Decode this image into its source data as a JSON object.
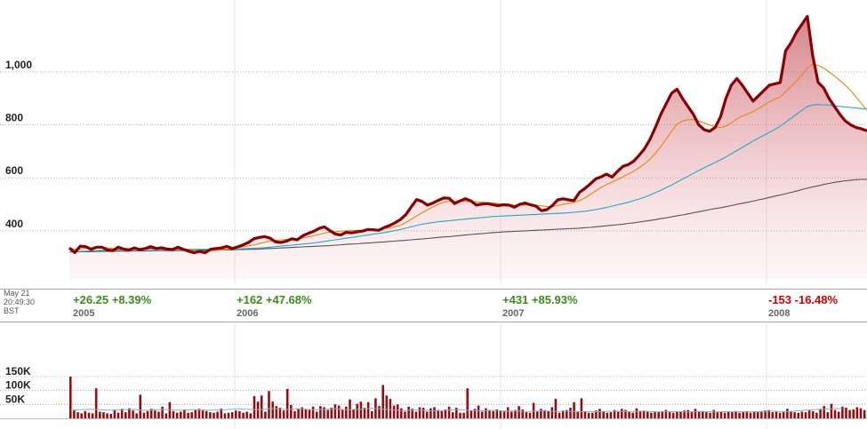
{
  "chart_data": {
    "type": "line",
    "price_axis": {
      "ticks": [
        400,
        600,
        800,
        1000
      ],
      "tick_labels": [
        "400",
        "600",
        "800",
        "1,000"
      ],
      "ylim": [
        215,
        1245
      ]
    },
    "price": [
      335,
      318,
      342,
      340,
      330,
      338,
      338,
      328,
      325,
      338,
      331,
      328,
      335,
      329,
      333,
      340,
      333,
      336,
      331,
      329,
      338,
      330,
      323,
      317,
      322,
      317,
      330,
      333,
      335,
      341,
      333,
      339,
      347,
      356,
      370,
      375,
      378,
      372,
      358,
      356,
      361,
      370,
      366,
      381,
      390,
      398,
      409,
      415,
      401,
      388,
      384,
      394,
      392,
      396,
      399,
      405,
      404,
      402,
      412,
      420,
      430,
      442,
      461,
      490,
      518,
      511,
      497,
      505,
      515,
      524,
      523,
      503,
      513,
      521,
      513,
      497,
      501,
      503,
      499,
      495,
      498,
      497,
      489,
      500,
      505,
      498,
      493,
      476,
      480,
      495,
      517,
      521,
      517,
      514,
      545,
      560,
      577,
      596,
      604,
      614,
      603,
      624,
      643,
      650,
      663,
      685,
      710,
      745,
      790,
      840,
      880,
      920,
      935,
      900,
      870,
      840,
      800,
      782,
      776,
      790,
      830,
      900,
      950,
      975,
      950,
      920,
      890,
      910,
      930,
      950,
      955,
      960,
      1080,
      1110,
      1150,
      1180,
      1210,
      1060,
      960,
      940,
      900,
      870,
      840,
      815,
      800,
      790,
      785,
      778
    ],
    "ma_fast": [
      335,
      330,
      330,
      335,
      336,
      336,
      337,
      336,
      333,
      333,
      332,
      331,
      331,
      332,
      333,
      334,
      334,
      335,
      333,
      333,
      333,
      331,
      329,
      327,
      325,
      324,
      325,
      326,
      328,
      331,
      333,
      336,
      339,
      343,
      347,
      352,
      357,
      362,
      364,
      366,
      367,
      368,
      369,
      373,
      377,
      381,
      386,
      391,
      395,
      397,
      399,
      400,
      401,
      402,
      403,
      404,
      405,
      406,
      408,
      411,
      415,
      421,
      431,
      443,
      456,
      468,
      480,
      490,
      500,
      508,
      513,
      513,
      512,
      511,
      510,
      509,
      508,
      507,
      505,
      503,
      501,
      499,
      497,
      497,
      497,
      497,
      496,
      494,
      492,
      492,
      495,
      500,
      504,
      507,
      514,
      524,
      537,
      551,
      564,
      575,
      584,
      594,
      604,
      614,
      625,
      638,
      652,
      670,
      692,
      718,
      746,
      776,
      803,
      815,
      820,
      820,
      815,
      808,
      800,
      793,
      790,
      795,
      808,
      823,
      833,
      841,
      850,
      862,
      875,
      887,
      897,
      906,
      925,
      945,
      965,
      990,
      1015,
      1030,
      1025,
      1015,
      1000,
      985,
      968,
      950,
      930,
      905,
      880,
      855
    ],
    "ma_mid": [
      320,
      321,
      322,
      323,
      324,
      325,
      326,
      327,
      327,
      328,
      328,
      329,
      329,
      329,
      330,
      330,
      330,
      330,
      330,
      330,
      330,
      330,
      330,
      330,
      330,
      330,
      330,
      330,
      330,
      330,
      331,
      331,
      332,
      333,
      334,
      335,
      336,
      338,
      340,
      342,
      344,
      346,
      348,
      350,
      352,
      354,
      357,
      360,
      363,
      366,
      369,
      372,
      375,
      378,
      381,
      384,
      387,
      390,
      393,
      397,
      401,
      405,
      410,
      415,
      420,
      425,
      428,
      431,
      434,
      436,
      438,
      440,
      442,
      444,
      446,
      448,
      450,
      452,
      454,
      455,
      456,
      457,
      458,
      459,
      460,
      461,
      462,
      463,
      464,
      465,
      466,
      467,
      468,
      470,
      472,
      474,
      477,
      480,
      484,
      488,
      493,
      498,
      503,
      508,
      514,
      520,
      527,
      535,
      544,
      553,
      563,
      573,
      584,
      595,
      606,
      617,
      628,
      638,
      648,
      658,
      668,
      679,
      691,
      703,
      715,
      727,
      739,
      750,
      761,
      772,
      783,
      795,
      810,
      825,
      840,
      855,
      870,
      875,
      877,
      876,
      875,
      872,
      870,
      868,
      866,
      864,
      862,
      860
    ],
    "ma_slow": [
      320,
      320,
      321,
      321,
      321,
      322,
      322,
      322,
      322,
      323,
      323,
      323,
      324,
      324,
      324,
      324,
      325,
      325,
      325,
      325,
      325,
      326,
      326,
      326,
      327,
      327,
      327,
      327,
      328,
      328,
      328,
      329,
      329,
      330,
      330,
      331,
      332,
      333,
      334,
      335,
      336,
      337,
      338,
      339,
      340,
      341,
      342,
      343,
      344,
      346,
      347,
      349,
      350,
      351,
      353,
      354,
      355,
      357,
      358,
      360,
      361,
      363,
      364,
      366,
      368,
      369,
      371,
      373,
      375,
      377,
      378,
      380,
      382,
      384,
      386,
      388,
      389,
      391,
      393,
      394,
      396,
      397,
      398,
      399,
      400,
      401,
      402,
      403,
      404,
      405,
      406,
      407,
      408,
      409,
      410,
      412,
      413,
      415,
      417,
      419,
      421,
      423,
      425,
      428,
      430,
      433,
      436,
      439,
      442,
      446,
      449,
      453,
      457,
      460,
      464,
      468,
      472,
      476,
      480,
      484,
      487,
      491,
      495,
      500,
      504,
      508,
      512,
      517,
      521,
      526,
      531,
      535,
      540,
      545,
      550,
      556,
      561,
      566,
      570,
      575,
      579,
      583,
      586,
      589,
      591,
      593,
      594,
      594
    ],
    "volume_axis": {
      "ticks": [
        50000,
        100000,
        150000
      ],
      "tick_labels": [
        "50K",
        "100K",
        "150K"
      ]
    },
    "volume": [
      150000,
      28000,
      22000,
      18000,
      26000,
      20000,
      18000,
      108000,
      24000,
      22000,
      18000,
      16000,
      30000,
      20000,
      34000,
      22000,
      36000,
      28000,
      18000,
      85000,
      20000,
      26000,
      34000,
      28000,
      24000,
      42000,
      18000,
      58000,
      26000,
      20000,
      24000,
      32000,
      20000,
      22000,
      30000,
      34000,
      28000,
      26000,
      22000,
      20000,
      24000,
      35000,
      18000,
      20000,
      22000,
      28000,
      26000,
      20000,
      24000,
      18000,
      80000,
      60000,
      82000,
      24000,
      98000,
      60000,
      44000,
      38000,
      28000,
      106000,
      48000,
      26000,
      34000,
      40000,
      32000,
      30000,
      42000,
      24000,
      44000,
      40000,
      30000,
      38000,
      50000,
      46000,
      30000,
      42000,
      68000,
      32000,
      52000,
      60000,
      38000,
      58000,
      26000,
      72000,
      44000,
      120000,
      82000,
      70000,
      46000,
      50000,
      36000,
      24000,
      42000,
      34000,
      24000,
      40000,
      38000,
      24000,
      36000,
      40000,
      30000,
      26000,
      32000,
      42000,
      22000,
      38000,
      20000,
      20000,
      108000,
      28000,
      34000,
      46000,
      24000,
      36000,
      30000,
      26000,
      32000,
      28000,
      26000,
      40000,
      24000,
      30000,
      44000,
      32000,
      22000,
      20000,
      56000,
      24000,
      34000,
      30000,
      26000,
      40000,
      70000,
      20000,
      28000,
      30000,
      38000,
      58000,
      26000,
      72000,
      24000,
      20000,
      20000,
      28000,
      34000,
      24000,
      20000,
      22000,
      30000,
      26000,
      34000,
      30000,
      24000,
      20000,
      36000,
      24000,
      28000,
      26000,
      20000,
      22000,
      24000,
      26000,
      30000,
      22000,
      20000,
      26000,
      24000,
      28000,
      30000,
      22000,
      34000,
      24000,
      26000,
      22000,
      20000,
      30000,
      22000,
      24000,
      20000,
      26000,
      22000,
      24000,
      20000,
      22000,
      26000,
      20000,
      24000,
      22000,
      26000,
      28000,
      30000,
      22000,
      24000,
      20000,
      22000,
      34000,
      26000,
      22000,
      20000,
      24000,
      22000,
      28000,
      26000,
      20000,
      34000,
      44000,
      22000,
      52000,
      30000,
      24000,
      42000,
      38000,
      30000,
      32000,
      40000,
      36000,
      30000
    ],
    "volume_ma": [
      30000,
      30000,
      31000,
      31000,
      32000,
      32000,
      33000,
      32000,
      31000,
      30000,
      30000,
      29000,
      30000,
      30000,
      31000,
      31000,
      32000,
      32000,
      31000,
      30000,
      29000,
      29000,
      30000,
      31000,
      31000,
      32000,
      32000,
      31000,
      30000,
      29000,
      29000,
      30000,
      30000,
      31000,
      31000,
      30000,
      30000,
      29000,
      29000,
      30000,
      30000,
      31000,
      31000,
      32000,
      33000,
      34000,
      34000,
      33000,
      33000,
      32000,
      31000,
      31000,
      32000,
      33000,
      34000,
      35000,
      34000,
      33000,
      32000,
      32000,
      33000,
      33000,
      34000,
      34000,
      33000,
      32000,
      31000,
      31000,
      32000,
      32000,
      33000,
      33000,
      34000,
      33000,
      32000,
      31000,
      31000,
      32000,
      32000,
      33000,
      34000,
      35000,
      36000,
      35000,
      34000,
      33000,
      32000,
      31000,
      30000,
      29000,
      28000,
      28000,
      29000,
      29000,
      30000,
      30000,
      29000,
      28000,
      27000,
      27000,
      28000,
      28000,
      29000,
      30000,
      30000,
      31000,
      31000,
      30000,
      29000,
      28000,
      28000,
      27000,
      27000,
      28000,
      28000,
      29000,
      28000,
      27000,
      26000,
      26000,
      27000,
      27000,
      26000,
      26000,
      25000,
      25000,
      26000,
      26000,
      27000,
      27000,
      26000,
      26000,
      25000,
      25000,
      26000,
      26000,
      25000,
      25000,
      24000,
      24000,
      25000,
      25000,
      24000,
      24000,
      24000,
      25000,
      25000,
      26000,
      26000,
      25000,
      25000,
      24000,
      24000,
      25000,
      25000,
      26000,
      26000,
      25000,
      24000,
      24000,
      23000,
      23000,
      24000,
      24000,
      25000,
      24000,
      24000,
      23000,
      23000,
      24000,
      24000,
      25000,
      25000,
      24000,
      24000,
      23000,
      23000,
      24000,
      24000,
      24000,
      25000,
      25000,
      24000,
      24000,
      23000,
      23000,
      24000,
      24000,
      25000,
      25000,
      26000,
      26000,
      25000,
      25000,
      24000,
      24000,
      25000,
      26000,
      27000,
      28000,
      29000,
      30000,
      31000,
      32000,
      32000,
      33000,
      34000,
      34000,
      35000,
      35000,
      34000
    ],
    "timestamp": [
      "May 21",
      "20:49:30",
      "BST"
    ],
    "periods": [
      {
        "year": "2005",
        "change": "+26.25",
        "pct": "+8.39%",
        "dir": "up"
      },
      {
        "year": "2006",
        "change": "+162",
        "pct": "+47.68%",
        "dir": "up"
      },
      {
        "year": "2007",
        "change": "+431",
        "pct": "+85.93%",
        "dir": "up"
      },
      {
        "year": "2008",
        "change": "-153",
        "pct": "-16.48%",
        "dir": "down"
      }
    ],
    "colors": {
      "price": "#8b0000",
      "ma_fast": "#e8860c",
      "ma_mid": "#1fa8c8",
      "ma_slow": "#555555",
      "volume": "#9b0a0a",
      "volume_ma": "#7ab0d8",
      "gridline": "#999999",
      "positive": "#3c8c1c",
      "negative": "#d40000"
    },
    "grid": true
  }
}
